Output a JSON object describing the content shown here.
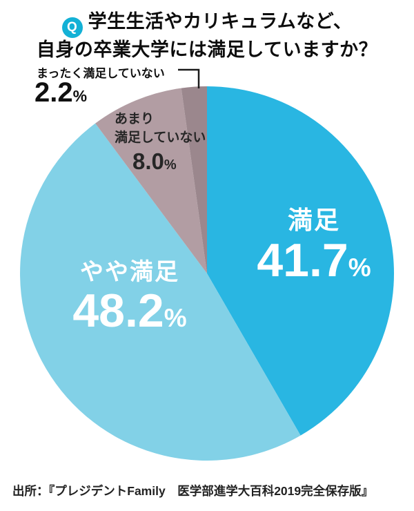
{
  "title": {
    "badge": "Q",
    "line1": "学生生活やカリキュラムなど、",
    "line2": "自身の卒業大学には満足していますか？"
  },
  "source": "出所：『プレジデントFamily　医学部進学大百科2019完全保存版』",
  "chart_data": {
    "type": "pie",
    "title": "学生生活やカリキュラムなど、自身の卒業大学には満足していますか？",
    "direction": "clockwise",
    "start_angle_deg": 0,
    "unit": "%",
    "legend_position": "labels-on-slices",
    "slices": [
      {
        "label": "満足",
        "value": 41.7,
        "pct_number": "41.7",
        "pct_sign": "%",
        "color": "#29b6e2",
        "text_color": "#ffffff"
      },
      {
        "label": "やや満足",
        "value": 48.2,
        "pct_number": "48.2",
        "pct_sign": "%",
        "color": "#82d1e7",
        "text_color": "#ffffff"
      },
      {
        "label": "あまり満足していない",
        "label_lines": [
          "あまり",
          "満足していない"
        ],
        "value": 8.0,
        "pct_number": "8.0",
        "pct_sign": "%",
        "color": "#b29da3",
        "text_color": "#262626"
      },
      {
        "label": "まったく満足していない",
        "value": 2.2,
        "pct_number": "2.2",
        "pct_sign": "%",
        "color": "#9b878d",
        "text_color": "#101010"
      }
    ]
  }
}
